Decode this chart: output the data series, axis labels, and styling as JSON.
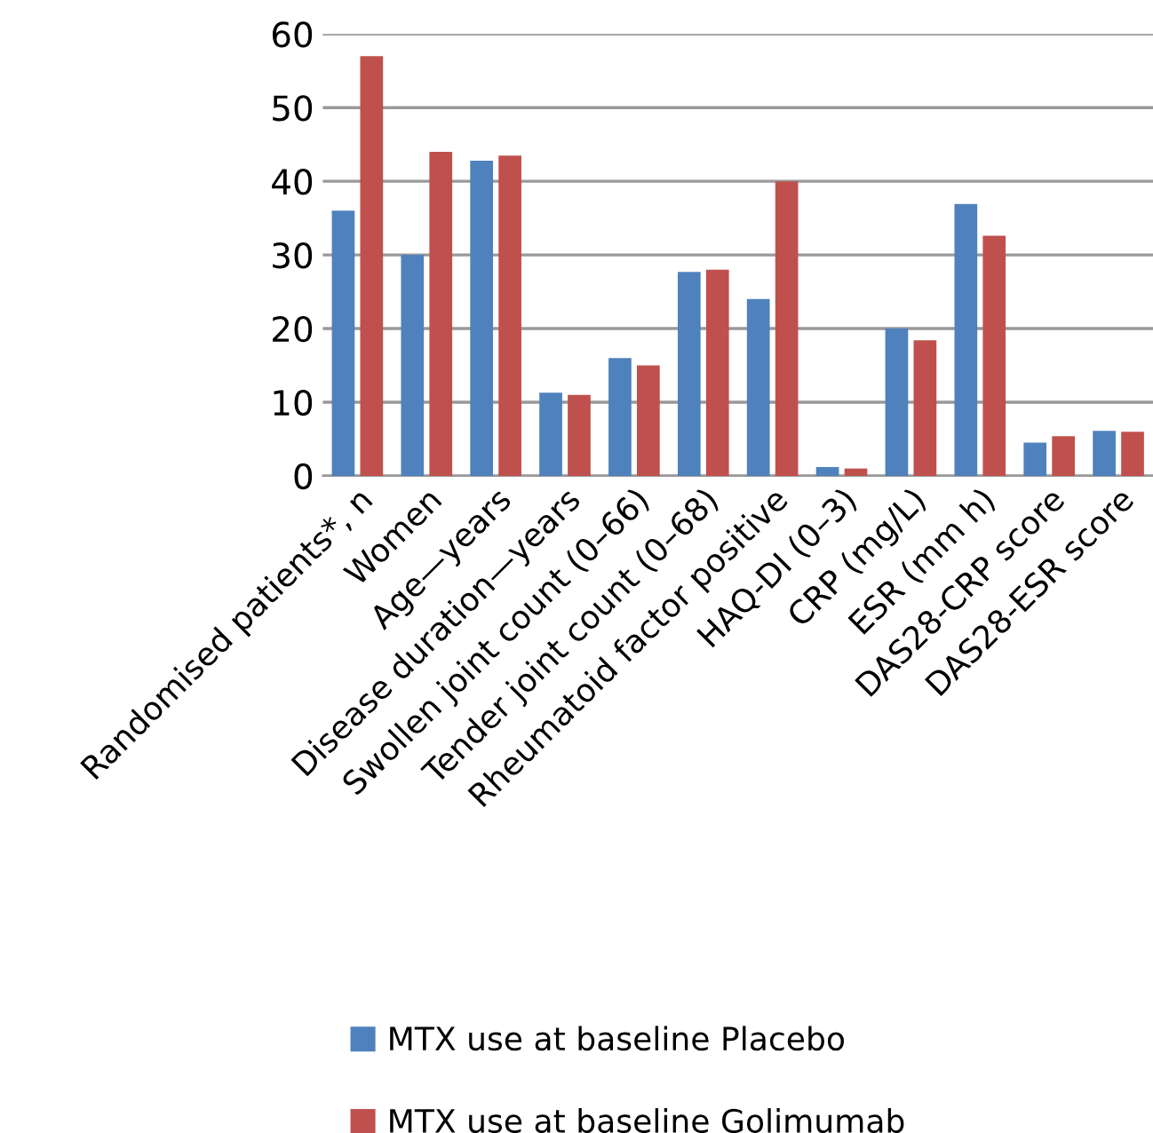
{
  "chart_data": {
    "type": "bar",
    "categories": [
      "Randomised patients*, n",
      "Women",
      "Age—years",
      "Disease duration—years",
      "Swollen joint count (0–66)",
      "Tender joint count (0–68)",
      "Rheumatoid factor positive",
      "HAQ-DI (0–3)",
      "CRP (mg/L)",
      "ESR (mm h)",
      "DAS28-CRP score",
      "DAS28-ESR score"
    ],
    "series": [
      {
        "name": "MTX use at baseline Placebo",
        "color": "#4f81bd",
        "values": [
          36,
          30,
          42.8,
          11.3,
          16,
          27.7,
          24,
          1.2,
          20,
          36.9,
          4.5,
          6.1
        ]
      },
      {
        "name": "MTX use at baseline Golimumab",
        "color": "#c0504d",
        "values": [
          57,
          44,
          43.5,
          11,
          15,
          28,
          40,
          1,
          18.4,
          32.6,
          5.4,
          6
        ]
      }
    ],
    "ylim": [
      0,
      60
    ],
    "yticks": [
      0,
      10,
      20,
      30,
      40,
      50,
      60
    ],
    "grid": "y",
    "legend": "bottom"
  }
}
